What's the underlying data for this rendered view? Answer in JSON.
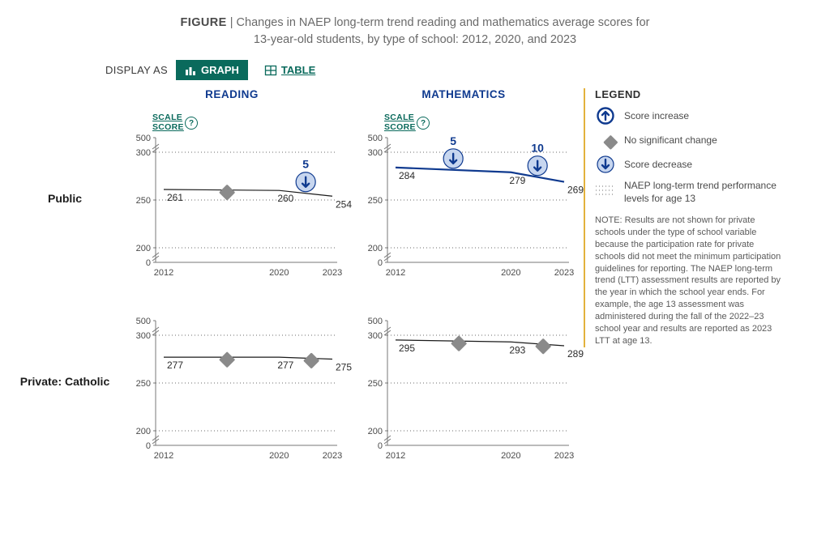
{
  "figure": {
    "label": "FIGURE",
    "sep": "|",
    "caption_l1": "Changes in NAEP long-term trend reading and mathematics average scores for",
    "caption_l2": "13-year-old students, by type of school: 2012, 2020, and 2023"
  },
  "display": {
    "label": "DISPLAY AS",
    "graph": "GRAPH",
    "table": "TABLE"
  },
  "columns": {
    "reading": "READING",
    "math": "MATHEMATICS"
  },
  "rows": {
    "public": "Public",
    "catholic": "Private: Catholic"
  },
  "scale_label_l1": "SCALE",
  "scale_label_l2": "SCORE",
  "help_char": "?",
  "axis": {
    "yticks": [
      0,
      200,
      250,
      300,
      500
    ],
    "xticks": [
      2012,
      2020,
      2023
    ],
    "grid_color": "#6b6b6b",
    "axis_color": "#777777",
    "bg": "#ffffff"
  },
  "charts": {
    "public_reading": {
      "subject": "reading",
      "row": "public",
      "points": [
        {
          "year": 2012,
          "value": 261
        },
        {
          "year": 2020,
          "value": 260
        },
        {
          "year": 2023,
          "value": 254
        }
      ],
      "line_color": "#1a1a1a",
      "line_width": 1.2,
      "markers": [
        {
          "between": [
            2012,
            2020
          ],
          "type": "diamond"
        },
        {
          "between": [
            2020,
            2023
          ],
          "type": "decrease",
          "delta": 5
        }
      ]
    },
    "public_math": {
      "subject": "math",
      "row": "public",
      "points": [
        {
          "year": 2012,
          "value": 284
        },
        {
          "year": 2020,
          "value": 279
        },
        {
          "year": 2023,
          "value": 269
        }
      ],
      "line_color": "#0f3a8f",
      "line_width": 2.2,
      "markers": [
        {
          "between": [
            2012,
            2020
          ],
          "type": "decrease",
          "delta": 5
        },
        {
          "between": [
            2020,
            2023
          ],
          "type": "decrease",
          "delta": 10
        }
      ]
    },
    "catholic_reading": {
      "subject": "reading",
      "row": "catholic",
      "points": [
        {
          "year": 2012,
          "value": 277
        },
        {
          "year": 2020,
          "value": 277
        },
        {
          "year": 2023,
          "value": 275
        }
      ],
      "line_color": "#1a1a1a",
      "line_width": 1.2,
      "markers": [
        {
          "between": [
            2012,
            2020
          ],
          "type": "diamond"
        },
        {
          "between": [
            2020,
            2023
          ],
          "type": "diamond"
        }
      ]
    },
    "catholic_math": {
      "subject": "math",
      "row": "catholic",
      "points": [
        {
          "year": 2012,
          "value": 295
        },
        {
          "year": 2020,
          "value": 293
        },
        {
          "year": 2023,
          "value": 289
        }
      ],
      "line_color": "#1a1a1a",
      "line_width": 1.2,
      "markers": [
        {
          "between": [
            2012,
            2020
          ],
          "type": "diamond"
        },
        {
          "between": [
            2020,
            2023
          ],
          "type": "diamond"
        }
      ]
    }
  },
  "marker_style": {
    "diamond": {
      "fill": "#8a8a8a",
      "size": 11
    },
    "circle": {
      "fill": "#c7d6ef",
      "stroke": "#0f3a8f",
      "r": 12,
      "arrow": "#0f3a8f"
    }
  },
  "legend": {
    "title": "LEGEND",
    "increase": "Score increase",
    "nochange": "No significant change",
    "decrease": "Score decrease",
    "perf": "NAEP long-term trend performance levels for age 13",
    "note": "NOTE: Results are not shown for private schools under the type of school variable because the participation rate for private schools did not meet the minimum participation guidelines for reporting. The NAEP long-term trend (LTT) assessment results are reported by the year in which the school year ends. For example, the age 13 assessment was administered during the fall of the 2022–23 school year and results are reported as 2023 LTT at age 13."
  }
}
